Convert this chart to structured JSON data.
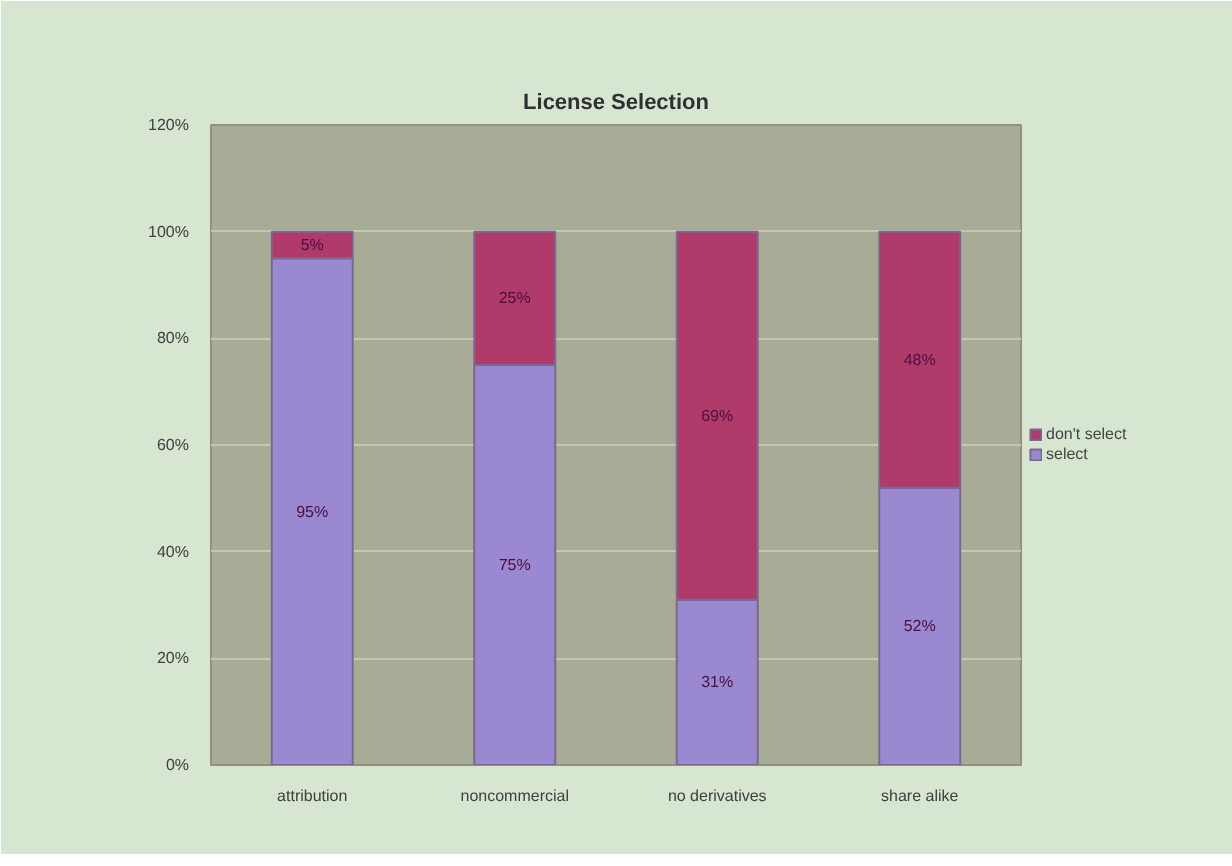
{
  "chart_data": {
    "type": "bar",
    "title": "License Selection",
    "stacked": true,
    "categories": [
      "attribution",
      "noncommercial",
      "no derivatives",
      "share alike"
    ],
    "series": [
      {
        "name": "select",
        "color": "#9a88d0",
        "values": [
          95,
          75,
          31,
          52
        ],
        "value_labels": [
          "95%",
          "75%",
          "31%",
          "52%"
        ]
      },
      {
        "name": "don't select",
        "color": "#b03a6a",
        "values": [
          5,
          25,
          69,
          48
        ],
        "value_labels": [
          "5%",
          "25%",
          "69%",
          "48%"
        ]
      }
    ],
    "ylim": [
      0,
      120
    ],
    "yticks": [
      {
        "value": 0,
        "label": "0%"
      },
      {
        "value": 20,
        "label": "20%"
      },
      {
        "value": 40,
        "label": "40%"
      },
      {
        "value": 60,
        "label": "60%"
      },
      {
        "value": 80,
        "label": "80%"
      },
      {
        "value": 100,
        "label": "100%"
      },
      {
        "value": 120,
        "label": "120%"
      }
    ],
    "grid": "y",
    "legend": "right"
  }
}
